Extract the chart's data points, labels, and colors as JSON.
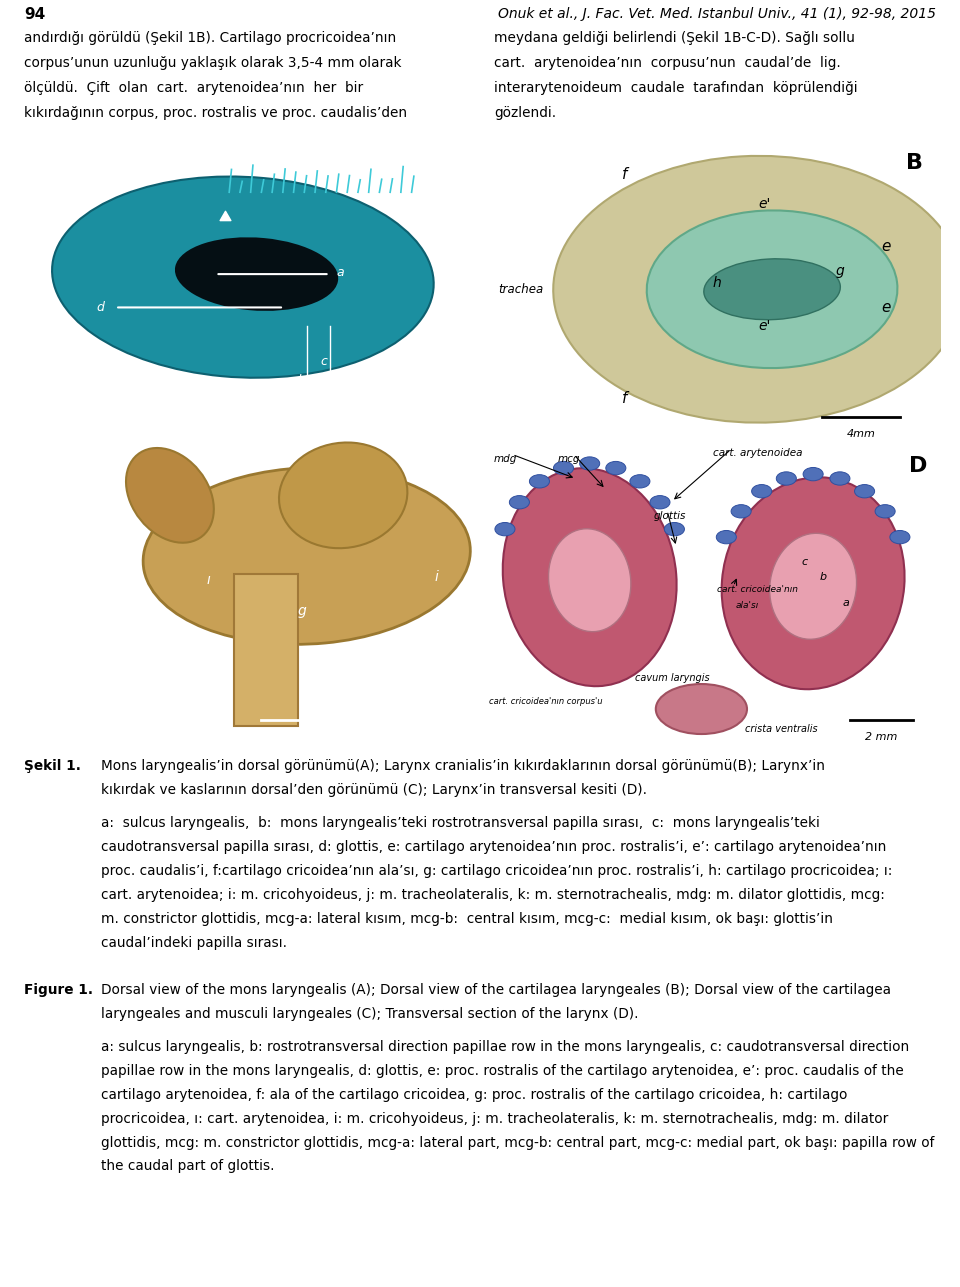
{
  "page_num": "94",
  "journal_header": "Onuk et al., J. Fac. Vet. Med. Istanbul Univ., 41 (1), 92-98, 2015",
  "intro_left_lines": [
    "andırdığı görüldü (Şekil 1B). Cartilago procricoidea’nın",
    "corpus’unun uzunluğu yaklaşık olarak 3,5-4 mm olarak",
    "ölçüldü.  Çift  olan  cart.  arytenoidea’nın  her  bir",
    "kıkırdağının corpus, proc. rostralis ve proc. caudalis’den"
  ],
  "intro_right_lines": [
    "meydana geldiği belirlendi (Şekil 1B-C-D). Sağlı sollu",
    "cart.  arytenoidea’nın  corpusu’nun  caudal’de  lig.",
    "interarytenoideum  caudale  tarafından  köprülendiği",
    "gözlendi."
  ],
  "sekil_label": "Şekil 1.",
  "sekil_line1": "Mons laryngealis’in dorsal görünümü(A); Larynx cranialis’in kıkırdaklarının dorsal görünümü(B); Larynx’in",
  "sekil_line2": "kıkırdak ve kaslarının dorsal’den görünümü (C); Larynx’in transversal kesiti (D).",
  "sekil_desc_lines": [
    "a:  sulcus laryngealis,  b:  mons laryngealis’teki rostrotransversal papilla sırası,  c:  mons laryngealis’teki",
    "caudotransversal papilla sırası, d: glottis, e: cartilago arytenoidea’nın proc. rostralis’i, e’: cartilago arytenoidea’nın",
    "proc. caudalis’i, f:cartilago cricoidea’nın ala’sı, g: cartilago cricoidea’nın proc. rostralis’i, h: cartilago procricoidea; ı:",
    "cart. arytenoidea; i: m. cricohyoideus, j: m. tracheolateralis, k: m. sternotrachealis, mdg: m. dilator glottidis, mcg:",
    "m. constrictor glottidis, mcg-a: lateral kısım, mcg-b:  central kısım, mcg-c:  medial kısım, ok başı: glottis’in",
    "caudal’indeki papilla sırası."
  ],
  "figure_label": "Figure 1.",
  "figure_line1": "Dorsal view of the mons laryngealis (A); Dorsal view of the cartilagea laryngeales (B); Dorsal view of the cartilagea",
  "figure_line2": "laryngeales and musculi laryngeales (C); Transversal section of the larynx (D).",
  "figure_desc_lines": [
    "a: sulcus laryngealis, b: rostrotransversal direction papillae row in the mons laryngealis, c: caudotransversal direction",
    "papillae row in the mons laryngealis, d: glottis, e: proc. rostralis of the cartilago arytenoidea, e’: proc. caudalis of the",
    "cartilago arytenoidea, f: ala of the cartilago cricoidea, g: proc. rostralis of the cartilago cricoidea, h: cartilago",
    "procricoidea, ı: cart. arytenoidea, i: m. cricohyoideus, j: m. tracheolateralis, k: m. sternotrachealis, mdg: m. dilator",
    "glottidis, mcg: m. constrictor glottidis, mcg-a: lateral part, mcg-b: central part, mcg-c: medial part, ok başı: papilla row of",
    "the caudal part of glottis."
  ],
  "bg_color": "#ffffff",
  "text_color": "#000000"
}
